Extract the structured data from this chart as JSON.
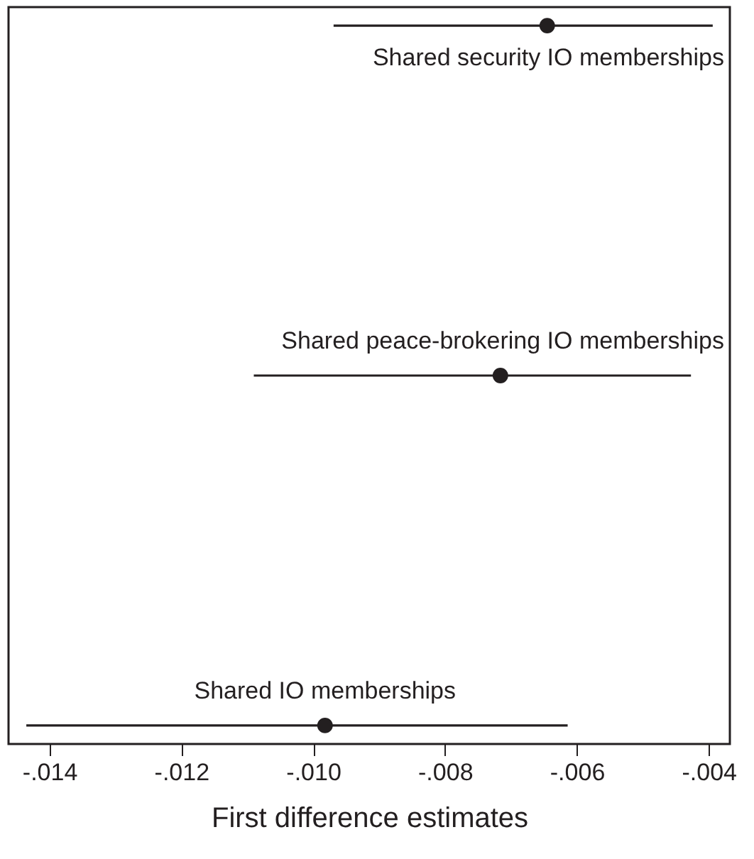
{
  "chart_data": {
    "type": "scatter",
    "orientation": "horizontal",
    "xlabel": "First difference estimates",
    "categories": [
      "Shared security IO memberships",
      "Shared peace-brokering IO memberships",
      "Shared IO memberships"
    ],
    "values": [
      -0.00645,
      -0.00716,
      -0.00982
    ],
    "errors": [
      [
        -0.00969,
        -0.00394
      ],
      [
        -0.0109,
        -0.00427
      ],
      [
        -0.01435,
        -0.00614
      ]
    ],
    "color": "#231f20",
    "marker": "circle",
    "grid": false,
    "tick_labels": "x",
    "xlim": [
      -0.01462,
      -0.00368
    ],
    "xticks": [
      {
        "value": -0.014,
        "label": "-.014"
      },
      {
        "value": -0.012,
        "label": "-.012"
      },
      {
        "value": -0.01,
        "label": "-.010"
      },
      {
        "value": -0.008,
        "label": "-.008"
      },
      {
        "value": -0.006,
        "label": "-.006"
      },
      {
        "value": -0.004,
        "label": "-.004"
      }
    ]
  }
}
